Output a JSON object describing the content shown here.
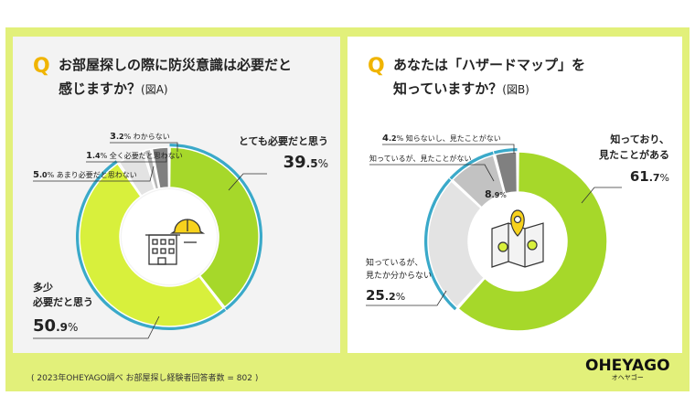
{
  "chart_data": [
    {
      "type": "pie",
      "id": "A",
      "question_mark": "Q",
      "title_line1": "お部屋探しの際に防災意識は必要だと",
      "title_line2": "感じますか？",
      "figure_label": "(図A)",
      "slices": [
        {
          "name": "とても必要だと思う",
          "value": 39.5,
          "int": "39",
          "dec": ".5",
          "unit": "%",
          "color": "#a6d82a"
        },
        {
          "name_lines": [
            "多少",
            "必要だと思う"
          ],
          "value": 50.9,
          "int": "50",
          "dec": ".9",
          "unit": "%",
          "color": "#d8f03c"
        },
        {
          "name": "あまり必要だと思わない",
          "value": 5.0,
          "int": "5",
          "dec": ".0",
          "unit": "%",
          "color": "#e3e3e3"
        },
        {
          "name": "全く必要だと思わない",
          "value": 1.4,
          "int": "1",
          "dec": ".4",
          "unit": "%",
          "color": "#b5b5b5"
        },
        {
          "name": "わからない",
          "value": 3.2,
          "int": "3",
          "dec": ".2",
          "unit": "%",
          "color": "#808080"
        }
      ]
    },
    {
      "type": "pie",
      "id": "B",
      "question_mark": "Q",
      "title_line1": "あなたは「ハザードマップ」を",
      "title_line2": "知っていますか？",
      "figure_label": "(図B)",
      "slices": [
        {
          "name_lines": [
            "知っており、",
            "見たことがある"
          ],
          "value": 61.7,
          "int": "61",
          "dec": ".7",
          "unit": "%",
          "color": "#a6d82a"
        },
        {
          "name_lines": [
            "知っているが、",
            "見たか分からない"
          ],
          "value": 25.2,
          "int": "25",
          "dec": ".2",
          "unit": "%",
          "color": "#e3e3e3"
        },
        {
          "name": "知っているが、見たことがない",
          "value": 8.9,
          "int": "8",
          "dec": ".9",
          "unit": "%",
          "color": "#c2c2c2"
        },
        {
          "name": "知らないし、見たことがない",
          "value": 4.2,
          "int": "4",
          "dec": ".2",
          "unit": "%",
          "color": "#808080"
        }
      ]
    }
  ],
  "footer": {
    "note": "( 2023年OHEYAGO調べ  お部屋探し経験者回答者数 = 802 )",
    "logo_main": "OHEYAGO",
    "logo_sub": "オヘヤゴー"
  },
  "colors": {
    "background": "#e2f07a",
    "accent_ring": "#3aa9c9",
    "question_mark": "#f0b400"
  }
}
